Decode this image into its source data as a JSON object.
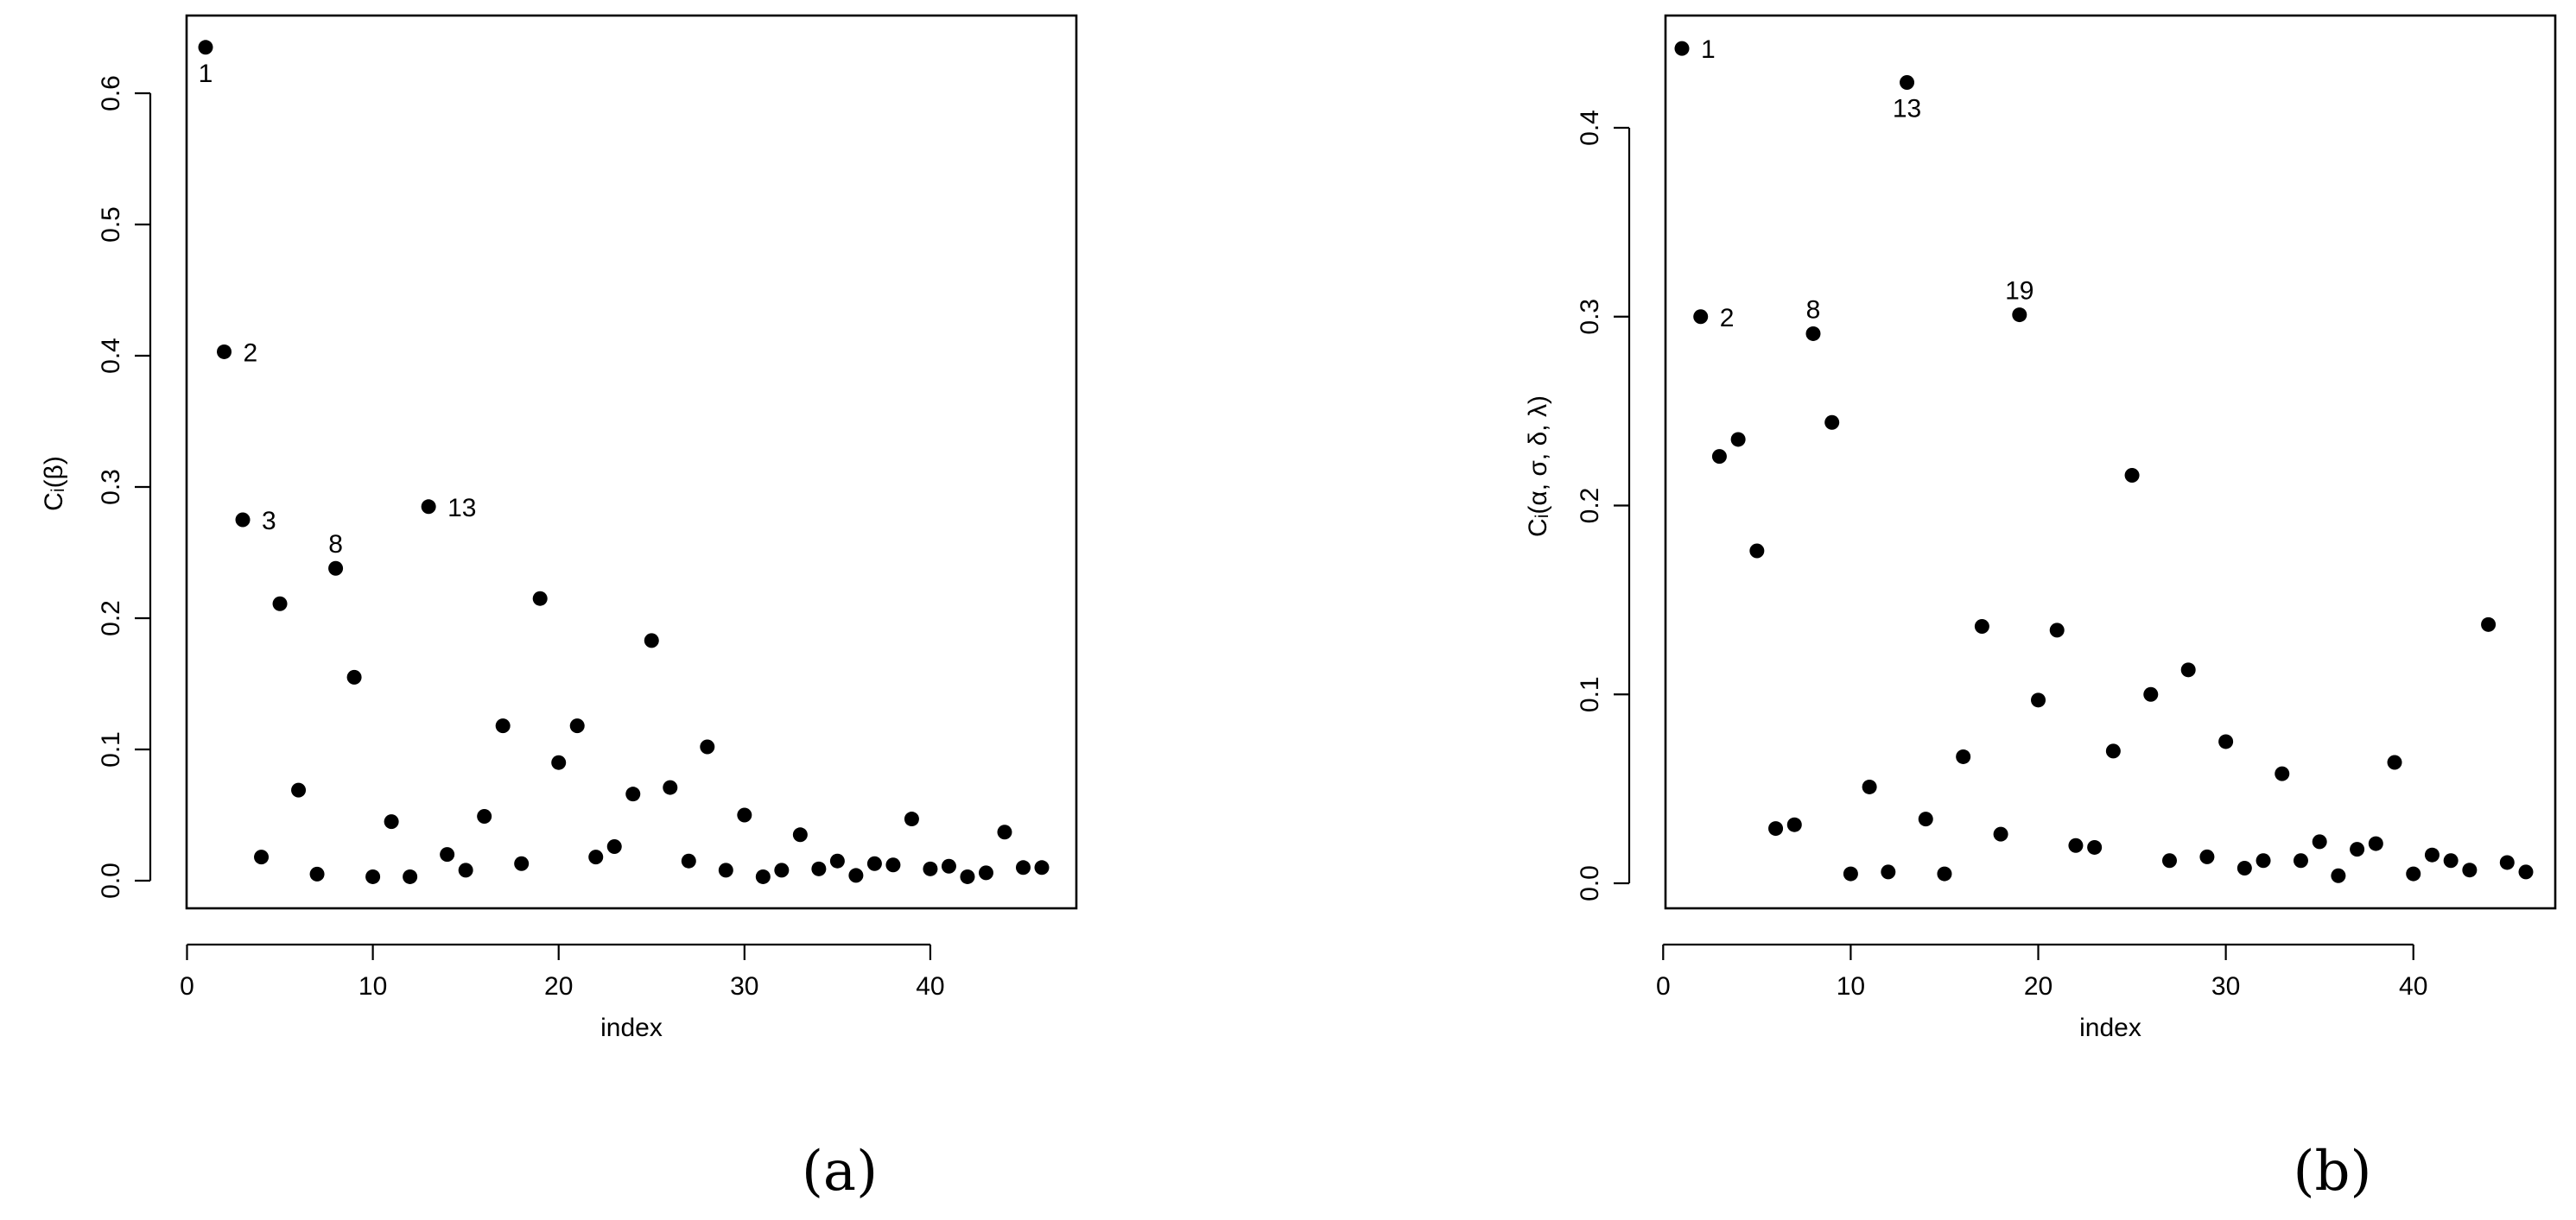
{
  "chart_data": [
    {
      "type": "scatter",
      "panel_label": "(a)",
      "xlabel": "index",
      "ylabel": "Cᵢ(β)",
      "xlim": [
        0,
        46
      ],
      "ylim": [
        0,
        0.64
      ],
      "xticks": [
        0,
        10,
        20,
        30,
        40
      ],
      "yticks": [
        0.0,
        0.1,
        0.2,
        0.3,
        0.4,
        0.5,
        0.6
      ],
      "ytick_labels": [
        "0.0",
        "0.1",
        "0.2",
        "0.3",
        "0.4",
        "0.5",
        "0.6"
      ],
      "grid": false,
      "x": [
        1,
        2,
        3,
        4,
        5,
        6,
        7,
        8,
        9,
        10,
        11,
        12,
        13,
        14,
        15,
        16,
        17,
        18,
        19,
        20,
        21,
        22,
        23,
        24,
        25,
        26,
        27,
        28,
        29,
        30,
        31,
        32,
        33,
        34,
        35,
        36,
        37,
        38,
        39,
        40,
        41,
        42,
        43,
        44,
        45,
        46
      ],
      "y": [
        0.635,
        0.403,
        0.275,
        0.018,
        0.211,
        0.069,
        0.005,
        0.238,
        0.155,
        0.003,
        0.045,
        0.003,
        0.285,
        0.02,
        0.008,
        0.049,
        0.118,
        0.013,
        0.215,
        0.09,
        0.118,
        0.018,
        0.026,
        0.066,
        0.183,
        0.071,
        0.015,
        0.102,
        0.008,
        0.05,
        0.003,
        0.008,
        0.035,
        0.009,
        0.015,
        0.004,
        0.013,
        0.012,
        0.047,
        0.009,
        0.011,
        0.003,
        0.006,
        0.037,
        0.01,
        0.01
      ],
      "annotations": [
        {
          "x": 1,
          "label": "1",
          "pos": "below"
        },
        {
          "x": 2,
          "label": "2",
          "pos": "right"
        },
        {
          "x": 3,
          "label": "3",
          "pos": "right"
        },
        {
          "x": 8,
          "label": "8",
          "pos": "above"
        },
        {
          "x": 13,
          "label": "13",
          "pos": "right"
        }
      ]
    },
    {
      "type": "scatter",
      "panel_label": "(b)",
      "xlabel": "index",
      "ylabel": "Cᵢ(α, σ, δ, λ)",
      "xlim": [
        0,
        46
      ],
      "ylim": [
        0,
        0.44
      ],
      "xticks": [
        0,
        10,
        20,
        30,
        40
      ],
      "yticks": [
        0.0,
        0.1,
        0.2,
        0.3,
        0.4
      ],
      "ytick_labels": [
        "0.0",
        "0.1",
        "0.2",
        "0.3",
        "0.4"
      ],
      "grid": false,
      "x": [
        1,
        2,
        3,
        4,
        5,
        6,
        7,
        8,
        9,
        10,
        11,
        12,
        13,
        14,
        15,
        16,
        17,
        18,
        19,
        20,
        21,
        22,
        23,
        24,
        25,
        26,
        27,
        28,
        29,
        30,
        31,
        32,
        33,
        34,
        35,
        36,
        37,
        38,
        39,
        40,
        41,
        42,
        43,
        44,
        45,
        46
      ],
      "y": [
        0.442,
        0.3,
        0.226,
        0.235,
        0.176,
        0.029,
        0.031,
        0.291,
        0.244,
        0.005,
        0.051,
        0.006,
        0.424,
        0.034,
        0.005,
        0.067,
        0.136,
        0.026,
        0.301,
        0.097,
        0.134,
        0.02,
        0.019,
        0.07,
        0.216,
        0.1,
        0.012,
        0.113,
        0.014,
        0.075,
        0.008,
        0.012,
        0.058,
        0.012,
        0.022,
        0.004,
        0.018,
        0.021,
        0.064,
        0.005,
        0.015,
        0.012,
        0.007,
        0.137,
        0.011,
        0.006
      ],
      "annotations": [
        {
          "x": 1,
          "label": "1",
          "pos": "right"
        },
        {
          "x": 2,
          "label": "2",
          "pos": "right"
        },
        {
          "x": 8,
          "label": "8",
          "pos": "above"
        },
        {
          "x": 13,
          "label": "13",
          "pos": "below"
        },
        {
          "x": 19,
          "label": "19",
          "pos": "above"
        }
      ]
    }
  ]
}
